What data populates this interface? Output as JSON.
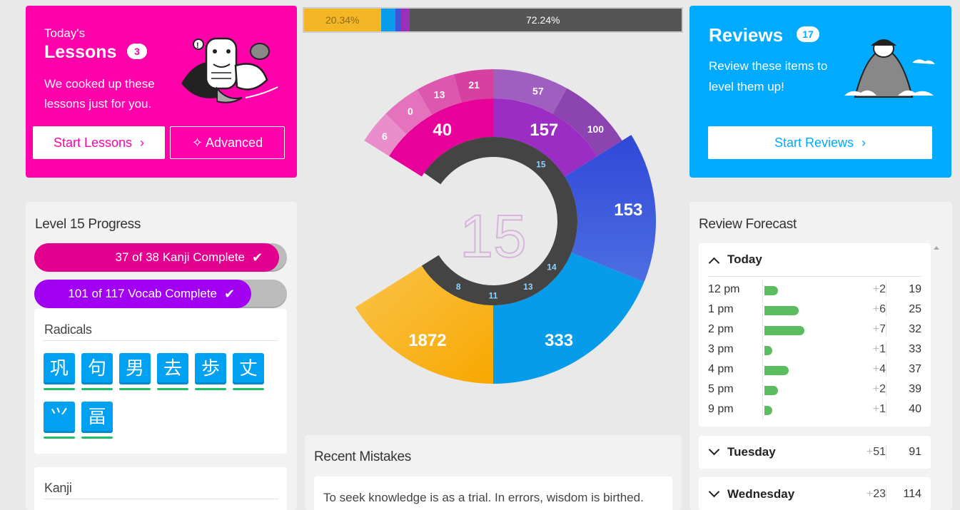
{
  "lessons": {
    "kicker": "Today's",
    "title": "Lessons",
    "count": "3",
    "description": "We cooked up these lessons just for you.",
    "start_label": "Start Lessons",
    "advanced_label": "Advanced",
    "color": "#ff00aa"
  },
  "reviews": {
    "title": "Reviews",
    "count": "17",
    "description": "Review these items to level them up!",
    "start_label": "Start Reviews",
    "color": "#00aaff"
  },
  "top_bar": {
    "left_percent": "20.34%",
    "right_percent": "72.24%"
  },
  "wheel": {
    "level": "15",
    "segments": {
      "apprentice": "40",
      "guru": "157",
      "master": "153",
      "enlightened": "333",
      "burned": "1872"
    },
    "outer": {
      "a1": "6",
      "a2": "0",
      "a3": "13",
      "a4": "21",
      "g1": "57",
      "g2": "100"
    },
    "markers": [
      "15",
      "14",
      "13",
      "11",
      "8"
    ]
  },
  "level_progress": {
    "title": "Level 15 Progress",
    "kanji_label": "37 of 38 Kanji Complete",
    "vocab_label": "101 of 117 Vocab Complete",
    "kanji_fraction": 0.97,
    "vocab_fraction": 0.86
  },
  "radicals": {
    "title": "Radicals",
    "items": [
      "巩",
      "句",
      "男",
      "去",
      "歩",
      "丈",
      "⺍",
      "畐"
    ]
  },
  "kanji": {
    "title": "Kanji"
  },
  "recent_mistakes": {
    "title": "Recent Mistakes",
    "quote": "To seek knowledge is as a trial. In errors, wisdom is birthed."
  },
  "forecast": {
    "title": "Review Forecast",
    "today_label": "Today",
    "rows": [
      {
        "time": "12 pm",
        "add": "2",
        "total": "19",
        "bar": 2
      },
      {
        "time": "1 pm",
        "add": "6",
        "total": "25",
        "bar": 6
      },
      {
        "time": "2 pm",
        "add": "7",
        "total": "32",
        "bar": 7
      },
      {
        "time": "3 pm",
        "add": "1",
        "total": "33",
        "bar": 1
      },
      {
        "time": "4 pm",
        "add": "4",
        "total": "37",
        "bar": 4
      },
      {
        "time": "5 pm",
        "add": "2",
        "total": "39",
        "bar": 2
      },
      {
        "time": "9 pm",
        "add": "1",
        "total": "40",
        "bar": 1
      }
    ],
    "tuesday": {
      "label": "Tuesday",
      "add": "51",
      "total": "91"
    },
    "wednesday": {
      "label": "Wednesday",
      "add": "23",
      "total": "114"
    }
  }
}
